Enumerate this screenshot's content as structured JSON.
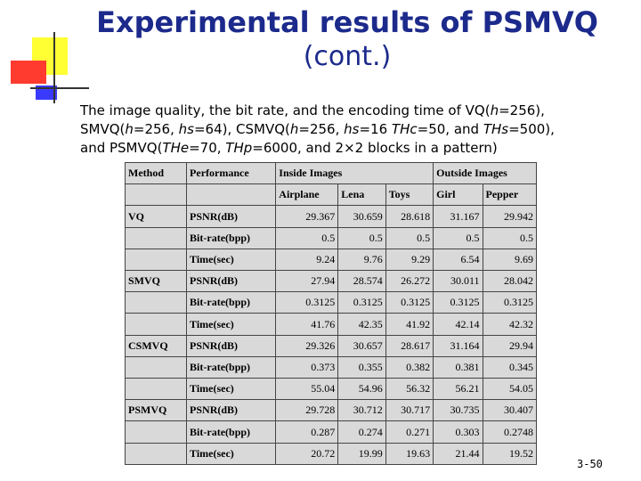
{
  "slide": {
    "title_line1": "Experimental results of PSMVQ",
    "title_line2": "(cont.)",
    "page_number": "3-50"
  },
  "description": {
    "p1_a": "The image quality, the bit rate, and the encoding time of VQ(",
    "p1_h": "h",
    "p1_b": "=256),",
    "p2_a": "SMVQ(",
    "p2_h": "h",
    "p2_b": "=256, ",
    "p2_hs": "hs",
    "p2_c": "=64), CSMVQ(",
    "p2_h2": "h",
    "p2_d": "=256, ",
    "p2_hs2": "hs",
    "p2_e": "=16 ",
    "p2_thc": "THc",
    "p2_f": "=50, and ",
    "p2_ths": "THs",
    "p2_g": "=500),",
    "p3_a": "and PSMVQ(",
    "p3_the": "THe",
    "p3_b": "=70, ",
    "p3_thp": "THp",
    "p3_c": "=6000, and 2×2 blocks in a pattern)"
  },
  "table": {
    "header": {
      "method": "Method",
      "performance": "Performance",
      "inside": "Inside Images",
      "outside": "Outside Images"
    },
    "images": [
      "Airplane",
      "Lena",
      "Toys",
      "Girl",
      "Pepper"
    ],
    "rows": [
      {
        "method": "VQ",
        "metric": "PSNR(dB)",
        "values": [
          "29.367",
          "30.659",
          "28.618",
          "31.167",
          "29.942"
        ]
      },
      {
        "method": "",
        "metric": "Bit-rate(bpp)",
        "values": [
          "0.5",
          "0.5",
          "0.5",
          "0.5",
          "0.5"
        ]
      },
      {
        "method": "",
        "metric": "Time(sec)",
        "values": [
          "9.24",
          "9.76",
          "9.29",
          "6.54",
          "9.69"
        ]
      },
      {
        "method": "SMVQ",
        "metric": "PSNR(dB)",
        "values": [
          "27.94",
          "28.574",
          "26.272",
          "30.011",
          "28.042"
        ]
      },
      {
        "method": "",
        "metric": "Bit-rate(bpp)",
        "values": [
          "0.3125",
          "0.3125",
          "0.3125",
          "0.3125",
          "0.3125"
        ]
      },
      {
        "method": "",
        "metric": "Time(sec)",
        "values": [
          "41.76",
          "42.35",
          "41.92",
          "42.14",
          "42.32"
        ]
      },
      {
        "method": "CSMVQ",
        "metric": "PSNR(dB)",
        "values": [
          "29.326",
          "30.657",
          "28.617",
          "31.164",
          "29.94"
        ]
      },
      {
        "method": "",
        "metric": "Bit-rate(bpp)",
        "values": [
          "0.373",
          "0.355",
          "0.382",
          "0.381",
          "0.345"
        ]
      },
      {
        "method": "",
        "metric": "Time(sec)",
        "values": [
          "55.04",
          "54.96",
          "56.32",
          "56.21",
          "54.05"
        ]
      },
      {
        "method": "PSMVQ",
        "metric": "PSNR(dB)",
        "values": [
          "29.728",
          "30.712",
          "30.717",
          "30.735",
          "30.407"
        ]
      },
      {
        "method": "",
        "metric": "Bit-rate(bpp)",
        "values": [
          "0.287",
          "0.274",
          "0.271",
          "0.303",
          "0.2748"
        ]
      },
      {
        "method": "",
        "metric": "Time(sec)",
        "values": [
          "20.72",
          "19.99",
          "19.63",
          "21.44",
          "19.52"
        ]
      }
    ]
  },
  "colors": {
    "title": "#1c2a8c",
    "table_bg": "#d9d9d9",
    "deco_yellow": "#ffff33",
    "deco_red": "#ff3b30",
    "deco_blue": "#3a3aff"
  }
}
